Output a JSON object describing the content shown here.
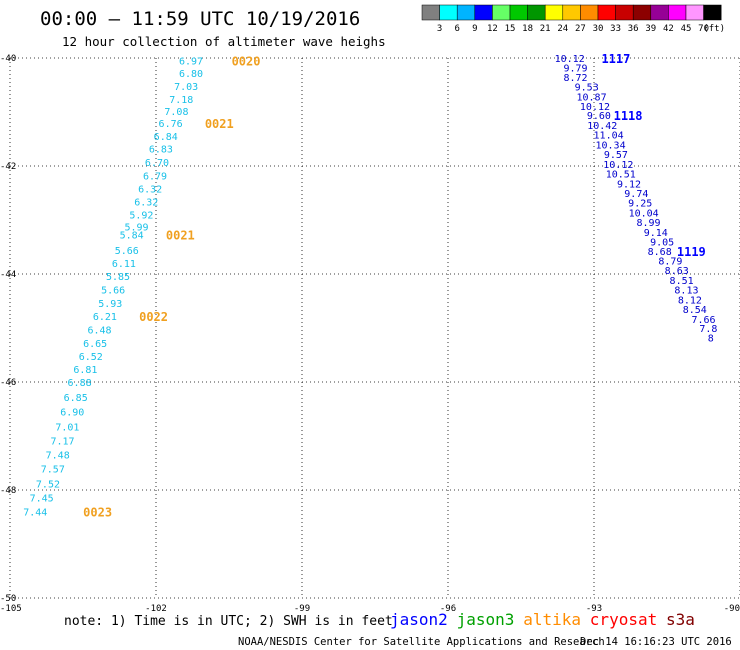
{
  "header": {
    "title": "00:00 — 11:59 UTC 10/19/2016",
    "subtitle": "12 hour collection of altimeter wave heighs"
  },
  "color_scale": {
    "unit_label": "(ft)",
    "labels": [
      "3",
      "6",
      "9",
      "12",
      "15",
      "18",
      "21",
      "24",
      "27",
      "30",
      "33",
      "36",
      "39",
      "42",
      "45",
      "70"
    ],
    "colors": [
      "#808080",
      "#00ffff",
      "#00b4ff",
      "#0000ff",
      "#66ff66",
      "#00c800",
      "#009600",
      "#ffff00",
      "#ffc800",
      "#ff8c00",
      "#ff0000",
      "#c80000",
      "#8c0000",
      "#960096",
      "#ff00ff",
      "#ff96ff",
      "#000000"
    ]
  },
  "map": {
    "lon_range": [
      -105,
      -90
    ],
    "lat_range": [
      -50,
      -40
    ],
    "x_ticks": [
      "-105",
      "-102",
      "-99",
      "-96",
      "-93",
      "-90"
    ],
    "y_ticks": [
      "-40",
      "-42",
      "-44",
      "-46",
      "-48",
      "-50"
    ],
    "grid": true,
    "colors": {
      "swh": "#18c0e8",
      "time_orange": "#f0a020",
      "time_blue": "#0000ff",
      "swh_dark": "#0000aa"
    }
  },
  "tracks": [
    {
      "satellite": "altika",
      "swh_color": "#18c0e8",
      "time_color": "#f0a020",
      "points": [
        {
          "lon": -101.28,
          "lat": -40.05,
          "swh": "6.97"
        },
        {
          "lon": -101.28,
          "lat": -40.28,
          "swh": "6.80"
        },
        {
          "lon": -101.38,
          "lat": -40.52,
          "swh": "7.03"
        },
        {
          "lon": -101.48,
          "lat": -40.76,
          "swh": "7.18"
        },
        {
          "lon": -101.58,
          "lat": -40.98,
          "swh": "7.08"
        },
        {
          "lon": -101.7,
          "lat": -41.2,
          "swh": "6.76"
        },
        {
          "lon": -101.8,
          "lat": -41.44,
          "swh": "6.84"
        },
        {
          "lon": -101.9,
          "lat": -41.68,
          "swh": "6.83"
        },
        {
          "lon": -101.98,
          "lat": -41.93,
          "swh": "6.70"
        },
        {
          "lon": -102.02,
          "lat": -42.18,
          "swh": "6.79"
        },
        {
          "lon": -102.12,
          "lat": -42.42,
          "swh": "6.32"
        },
        {
          "lon": -102.2,
          "lat": -42.66,
          "swh": "6.32"
        },
        {
          "lon": -102.3,
          "lat": -42.9,
          "swh": "5.92"
        },
        {
          "lon": -102.4,
          "lat": -43.12,
          "swh": "5.99"
        },
        {
          "lon": -102.5,
          "lat": -43.27,
          "swh": "5.84"
        },
        {
          "lon": -102.6,
          "lat": -43.56,
          "swh": "5.66"
        },
        {
          "lon": -102.66,
          "lat": -43.8,
          "swh": "6.11"
        },
        {
          "lon": -102.78,
          "lat": -44.04,
          "swh": "5.85"
        },
        {
          "lon": -102.88,
          "lat": -44.29,
          "swh": "5.66"
        },
        {
          "lon": -102.94,
          "lat": -44.54,
          "swh": "5.93"
        },
        {
          "lon": -103.05,
          "lat": -44.78,
          "swh": "6.21"
        },
        {
          "lon": -103.16,
          "lat": -45.03,
          "swh": "6.48"
        },
        {
          "lon": -103.25,
          "lat": -45.28,
          "swh": "6.65"
        },
        {
          "lon": -103.34,
          "lat": -45.52,
          "swh": "6.52"
        },
        {
          "lon": -103.45,
          "lat": -45.76,
          "swh": "6.81"
        },
        {
          "lon": -103.57,
          "lat": -46.0,
          "swh": "6.88"
        },
        {
          "lon": -103.65,
          "lat": -46.28,
          "swh": "6.85"
        },
        {
          "lon": -103.72,
          "lat": -46.55,
          "swh": "6.90"
        },
        {
          "lon": -103.82,
          "lat": -46.82,
          "swh": "7.01"
        },
        {
          "lon": -103.92,
          "lat": -47.08,
          "swh": "7.17"
        },
        {
          "lon": -104.02,
          "lat": -47.34,
          "swh": "7.48"
        },
        {
          "lon": -104.12,
          "lat": -47.6,
          "swh": "7.57"
        },
        {
          "lon": -104.22,
          "lat": -47.88,
          "swh": "7.52"
        },
        {
          "lon": -104.35,
          "lat": -48.14,
          "swh": "7.45"
        },
        {
          "lon": -104.48,
          "lat": -48.4,
          "swh": "7.44"
        }
      ],
      "times": [
        {
          "lon": -100.15,
          "lat": -40.05,
          "label": "0020"
        },
        {
          "lon": -100.7,
          "lat": -41.2,
          "label": "0021"
        },
        {
          "lon": -101.5,
          "lat": -43.27,
          "label": "0021"
        },
        {
          "lon": -102.05,
          "lat": -44.78,
          "label": "0022"
        },
        {
          "lon": -103.2,
          "lat": -48.4,
          "label": "0023"
        }
      ]
    },
    {
      "satellite": "jason2",
      "swh_color": "#0000cc",
      "time_color": "#0000ff",
      "points": [
        {
          "lon": -93.5,
          "lat": -40.0,
          "swh": "10.12"
        },
        {
          "lon": -93.38,
          "lat": -40.18,
          "swh": "9.79"
        },
        {
          "lon": -93.38,
          "lat": -40.35,
          "swh": "8.72"
        },
        {
          "lon": -93.15,
          "lat": -40.53,
          "swh": "9.53"
        },
        {
          "lon": -93.05,
          "lat": -40.71,
          "swh": "10.87"
        },
        {
          "lon": -92.98,
          "lat": -40.89,
          "swh": "10.12"
        },
        {
          "lon": -92.9,
          "lat": -41.06,
          "swh": "9.60"
        },
        {
          "lon": -92.83,
          "lat": -41.24,
          "swh": "10.42"
        },
        {
          "lon": -92.7,
          "lat": -41.42,
          "swh": "11.04"
        },
        {
          "lon": -92.66,
          "lat": -41.6,
          "swh": "10.34"
        },
        {
          "lon": -92.55,
          "lat": -41.78,
          "swh": "9.57"
        },
        {
          "lon": -92.5,
          "lat": -41.96,
          "swh": "10.12"
        },
        {
          "lon": -92.45,
          "lat": -42.14,
          "swh": "10.51"
        },
        {
          "lon": -92.28,
          "lat": -42.32,
          "swh": "9.12"
        },
        {
          "lon": -92.13,
          "lat": -42.5,
          "swh": "9.74"
        },
        {
          "lon": -92.05,
          "lat": -42.68,
          "swh": "9.25"
        },
        {
          "lon": -91.98,
          "lat": -42.86,
          "swh": "10.04"
        },
        {
          "lon": -91.88,
          "lat": -43.04,
          "swh": "8.99"
        },
        {
          "lon": -91.73,
          "lat": -43.22,
          "swh": "9.14"
        },
        {
          "lon": -91.6,
          "lat": -43.4,
          "swh": "9.05"
        },
        {
          "lon": -91.65,
          "lat": -43.57,
          "swh": "8.68"
        },
        {
          "lon": -91.43,
          "lat": -43.75,
          "swh": "8.79"
        },
        {
          "lon": -91.3,
          "lat": -43.93,
          "swh": "8.63"
        },
        {
          "lon": -91.2,
          "lat": -44.11,
          "swh": "8.51"
        },
        {
          "lon": -91.1,
          "lat": -44.29,
          "swh": "8.13"
        },
        {
          "lon": -91.03,
          "lat": -44.47,
          "swh": "8.12"
        },
        {
          "lon": -90.93,
          "lat": -44.65,
          "swh": "8.54"
        },
        {
          "lon": -90.75,
          "lat": -44.83,
          "swh": "7.66"
        },
        {
          "lon": -90.65,
          "lat": -45.0,
          "swh": "7.8"
        },
        {
          "lon": -90.6,
          "lat": -45.18,
          "swh": "8"
        }
      ],
      "times": [
        {
          "lon": -92.55,
          "lat": -40.0,
          "label": "1117"
        },
        {
          "lon": -92.3,
          "lat": -41.06,
          "label": "1118"
        },
        {
          "lon": -91.0,
          "lat": -43.57,
          "label": "1119"
        }
      ]
    }
  ],
  "footer": {
    "note": "note: 1) Time is in UTC; 2) SWH is in feet",
    "credit": "NOAA/NESDIS Center for Satellite Applications and Research",
    "timestamp": "Dec 14 16:16:23 UTC 2016",
    "satellites": [
      {
        "name": "jason2",
        "color": "#0000ff"
      },
      {
        "name": "jason3",
        "color": "#00a000"
      },
      {
        "name": "altika",
        "color": "#ff8c00"
      },
      {
        "name": "cryosat",
        "color": "#ff0000"
      },
      {
        "name": "s3a",
        "color": "#800000"
      }
    ]
  }
}
